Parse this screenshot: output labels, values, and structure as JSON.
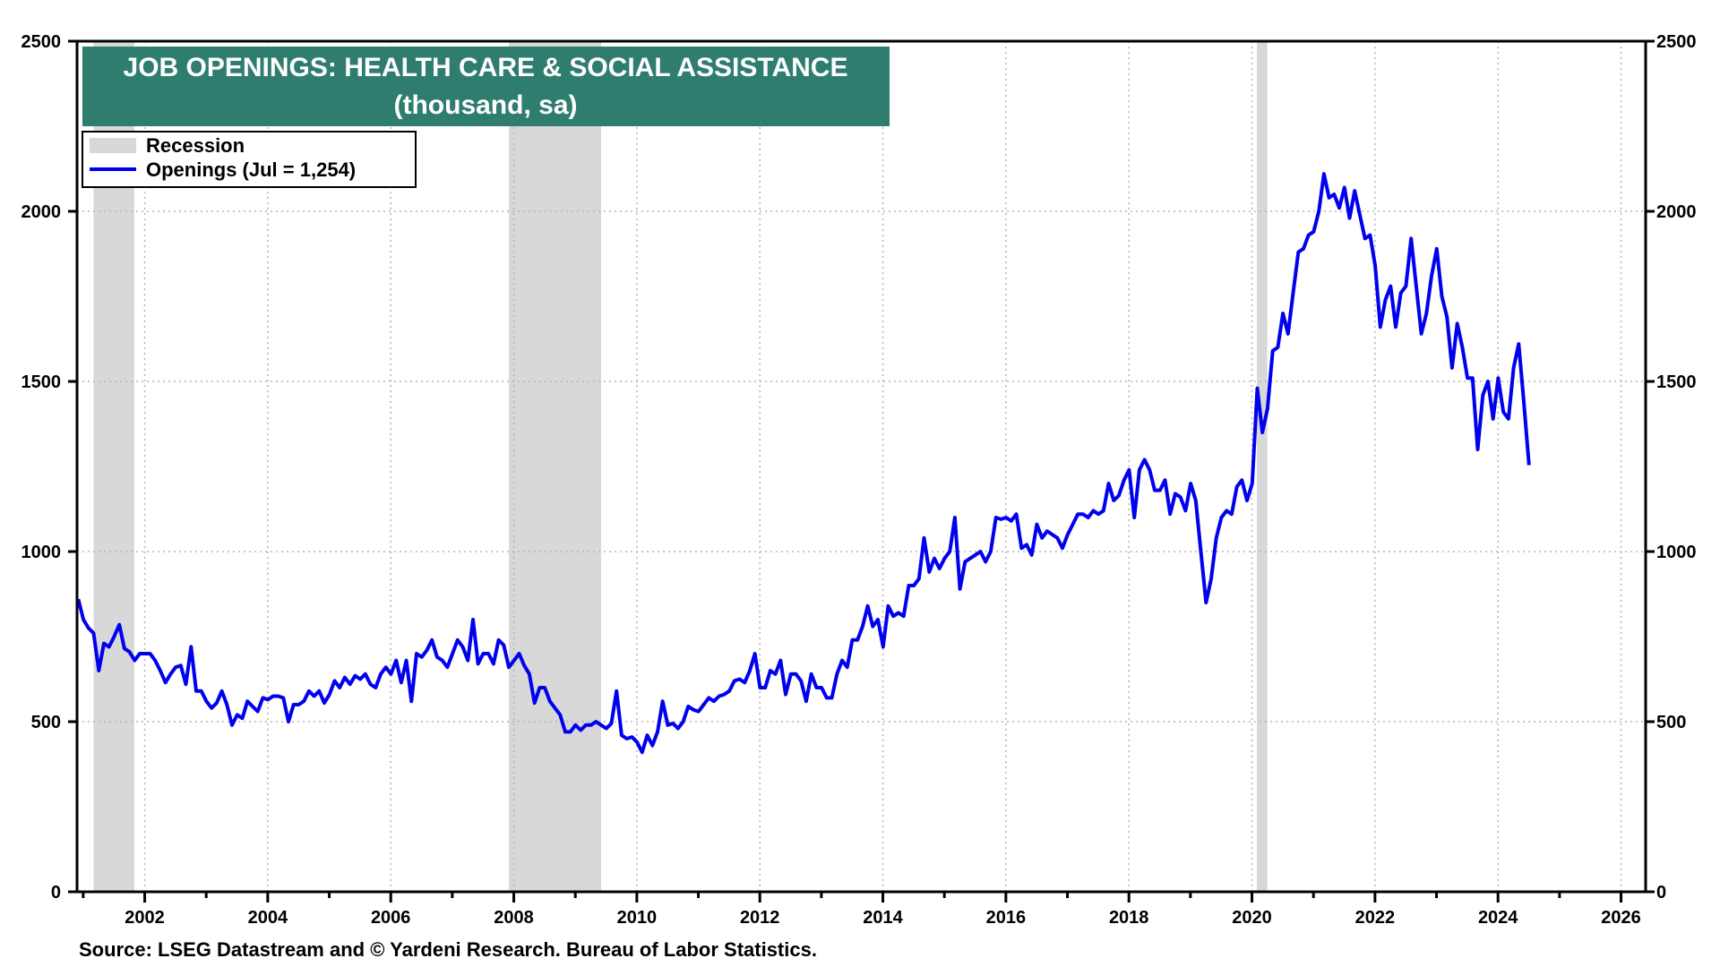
{
  "chart_data": {
    "type": "line",
    "title": "JOB OPENINGS: HEALTH CARE & SOCIAL ASSISTANCE",
    "subtitle": "(thousand, sa)",
    "source": "Source: LSEG Datastream and © Yardeni Research. Bureau of Labor Statistics.",
    "xlabel": "",
    "ylabel": "",
    "xlim": [
      2000.9,
      2026.4
    ],
    "ylim": [
      0,
      2500
    ],
    "x_ticks": [
      2002,
      2004,
      2006,
      2008,
      2010,
      2012,
      2014,
      2016,
      2018,
      2020,
      2022,
      2024,
      2026
    ],
    "y_ticks": [
      0,
      500,
      1000,
      1500,
      2000,
      2500
    ],
    "grid": true,
    "legend_placement": "top-left",
    "legend": [
      {
        "label": "Recession",
        "color": "#d8d8d8"
      },
      {
        "label": "Openings (Jul = 1,254)",
        "color": "#0000ee"
      }
    ],
    "recessions": [
      {
        "start": 2001.17,
        "end": 2001.83
      },
      {
        "start": 2007.92,
        "end": 2009.42
      },
      {
        "start": 2020.08,
        "end": 2020.25
      }
    ],
    "colors": {
      "line": "#0000ee",
      "recession": "#d8d8d8",
      "title_bg": "#2e7d6e",
      "grid": "#b5b5b5"
    },
    "series": [
      {
        "name": "Openings (Jul = 1,254)",
        "start": 2000.92,
        "step": 0.0833333,
        "values": [
          860,
          800,
          775,
          760,
          650,
          730,
          720,
          750,
          785,
          715,
          705,
          680,
          700,
          700,
          700,
          680,
          650,
          615,
          640,
          660,
          665,
          610,
          720,
          590,
          590,
          560,
          540,
          555,
          590,
          550,
          490,
          520,
          510,
          560,
          545,
          530,
          570,
          565,
          575,
          575,
          570,
          500,
          550,
          550,
          560,
          590,
          575,
          590,
          555,
          580,
          620,
          600,
          630,
          610,
          635,
          625,
          640,
          610,
          600,
          640,
          660,
          640,
          680,
          615,
          680,
          560,
          700,
          690,
          710,
          740,
          690,
          680,
          660,
          700,
          740,
          720,
          680,
          800,
          670,
          700,
          700,
          670,
          740,
          725,
          660,
          680,
          700,
          665,
          640,
          555,
          600,
          600,
          560,
          540,
          520,
          470,
          470,
          490,
          475,
          490,
          490,
          500,
          490,
          480,
          495,
          590,
          460,
          450,
          455,
          440,
          410,
          460,
          430,
          470,
          560,
          490,
          495,
          480,
          500,
          545,
          535,
          530,
          550,
          570,
          560,
          575,
          580,
          590,
          620,
          625,
          615,
          650,
          700,
          600,
          600,
          650,
          640,
          680,
          580,
          640,
          640,
          620,
          560,
          640,
          600,
          600,
          570,
          570,
          640,
          680,
          660,
          740,
          740,
          780,
          840,
          780,
          800,
          720,
          840,
          810,
          820,
          810,
          900,
          900,
          920,
          1040,
          940,
          980,
          950,
          980,
          1000,
          1100,
          890,
          970,
          980,
          990,
          1000,
          970,
          1000,
          1100,
          1095,
          1100,
          1090,
          1110,
          1010,
          1020,
          990,
          1080,
          1040,
          1060,
          1050,
          1040,
          1010,
          1050,
          1080,
          1110,
          1110,
          1100,
          1120,
          1110,
          1120,
          1200,
          1150,
          1165,
          1210,
          1240,
          1100,
          1240,
          1270,
          1240,
          1180,
          1180,
          1210,
          1110,
          1170,
          1160,
          1120,
          1200,
          1150,
          1000,
          850,
          920,
          1040,
          1100,
          1120,
          1110,
          1190,
          1210,
          1150,
          1200,
          1480,
          1350,
          1420,
          1590,
          1600,
          1700,
          1640,
          1760,
          1880,
          1890,
          1930,
          1940,
          2000,
          2110,
          2040,
          2050,
          2010,
          2070,
          1980,
          2060,
          1990,
          1920,
          1930,
          1840,
          1660,
          1740,
          1780,
          1660,
          1760,
          1780,
          1920,
          1780,
          1640,
          1700,
          1810,
          1890,
          1750,
          1690,
          1540,
          1670,
          1600,
          1510,
          1510,
          1300,
          1460,
          1500,
          1390,
          1510,
          1410,
          1390,
          1540,
          1610,
          1440,
          1254
        ]
      }
    ]
  }
}
